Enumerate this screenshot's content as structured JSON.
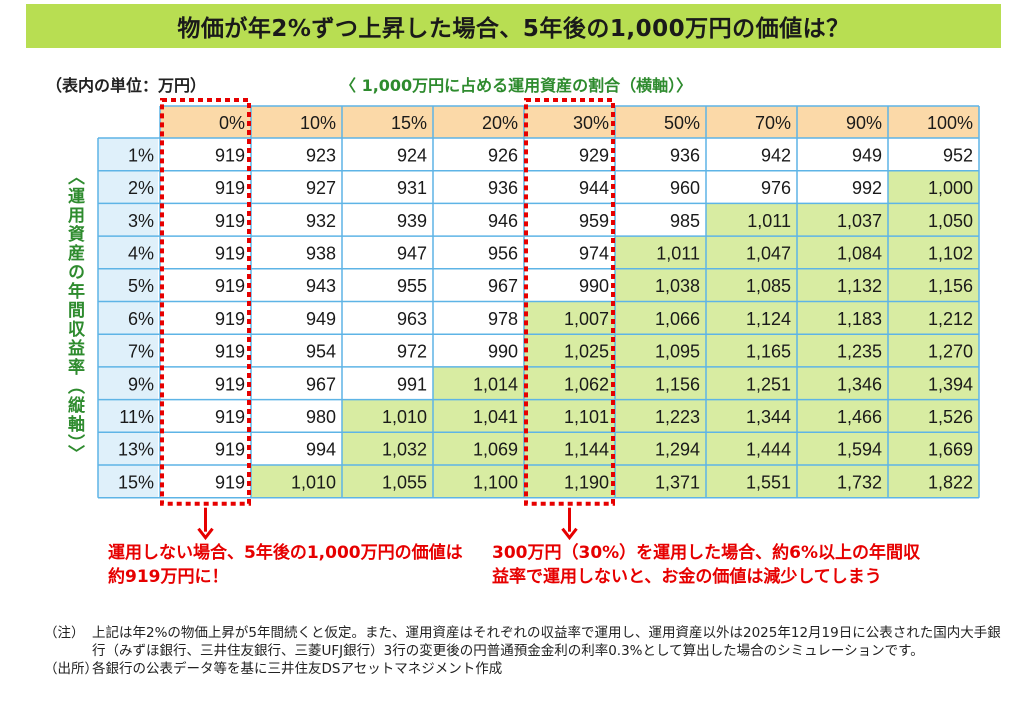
{
  "title": "物価が年2%ずつ上昇した場合、5年後の1,000万円の価値は？",
  "unit_label": "（表内の単位：万円）",
  "x_axis_label": "〈 1,000万円に占める運用資産の割合（横軸）〉",
  "y_axis_label": "〈運用資産の年間収益率（縦軸）〉",
  "colors": {
    "title_bg": "#b8de52",
    "header_bg": "#fbd9a8",
    "rowlabel_bg": "#dff0fa",
    "highlight_bg": "#d8eca2",
    "grid_line": "#5eb4e6",
    "accent_red": "#e60000",
    "axis_green": "#2e8b2e"
  },
  "chart_data": {
    "type": "table",
    "title": "物価が年2%ずつ上昇した場合、5年後の1,000万円の価値は？",
    "xlabel": "1,000万円に占める運用資産の割合（横軸）",
    "ylabel": "運用資産の年間収益率（縦軸）",
    "unit": "万円",
    "columns": [
      "0%",
      "10%",
      "15%",
      "20%",
      "30%",
      "50%",
      "70%",
      "90%",
      "100%"
    ],
    "rows": [
      "1%",
      "2%",
      "3%",
      "4%",
      "5%",
      "6%",
      "7%",
      "9%",
      "11%",
      "13%",
      "15%"
    ],
    "values": [
      [
        "919",
        "923",
        "924",
        "926",
        "929",
        "936",
        "942",
        "949",
        "952"
      ],
      [
        "919",
        "927",
        "931",
        "936",
        "944",
        "960",
        "976",
        "992",
        "1,000"
      ],
      [
        "919",
        "932",
        "939",
        "946",
        "959",
        "985",
        "1,011",
        "1,037",
        "1,050"
      ],
      [
        "919",
        "938",
        "947",
        "956",
        "974",
        "1,011",
        "1,047",
        "1,084",
        "1,102"
      ],
      [
        "919",
        "943",
        "955",
        "967",
        "990",
        "1,038",
        "1,085",
        "1,132",
        "1,156"
      ],
      [
        "919",
        "949",
        "963",
        "978",
        "1,007",
        "1,066",
        "1,124",
        "1,183",
        "1,212"
      ],
      [
        "919",
        "954",
        "972",
        "990",
        "1,025",
        "1,095",
        "1,165",
        "1,235",
        "1,270"
      ],
      [
        "919",
        "967",
        "991",
        "1,014",
        "1,062",
        "1,156",
        "1,251",
        "1,346",
        "1,394"
      ],
      [
        "919",
        "980",
        "1,010",
        "1,041",
        "1,101",
        "1,223",
        "1,344",
        "1,466",
        "1,526"
      ],
      [
        "919",
        "994",
        "1,032",
        "1,069",
        "1,144",
        "1,294",
        "1,444",
        "1,594",
        "1,669"
      ],
      [
        "919",
        "1,010",
        "1,055",
        "1,100",
        "1,190",
        "1,371",
        "1,551",
        "1,732",
        "1,822"
      ]
    ],
    "highlight_threshold": 1000,
    "highlighted_columns": [
      "0%",
      "30%"
    ]
  },
  "callouts": {
    "left": "運用しない場合、5年後の1,000万円の価値は約919万円に！",
    "right": "300万円（30%）を運用した場合、約6%以上の年間収益率で運用しないと、お金の価値は減少してしまう"
  },
  "notes": {
    "note_tag": "（注）",
    "note_text": "上記は年2%の物価上昇が5年間続くと仮定。また、運用資産はそれぞれの収益率で運用し、運用資産以外は2025年12月19日に公表された国内大手銀行（みずほ銀行、三井住友銀行、三菱UFJ銀行）3行の変更後の円普通預金金利の利率0.3%として算出した場合のシミュレーションです。",
    "source_tag": "（出所）",
    "source_text": "各銀行の公表データ等を基に三井住友DSアセットマネジメント作成"
  }
}
